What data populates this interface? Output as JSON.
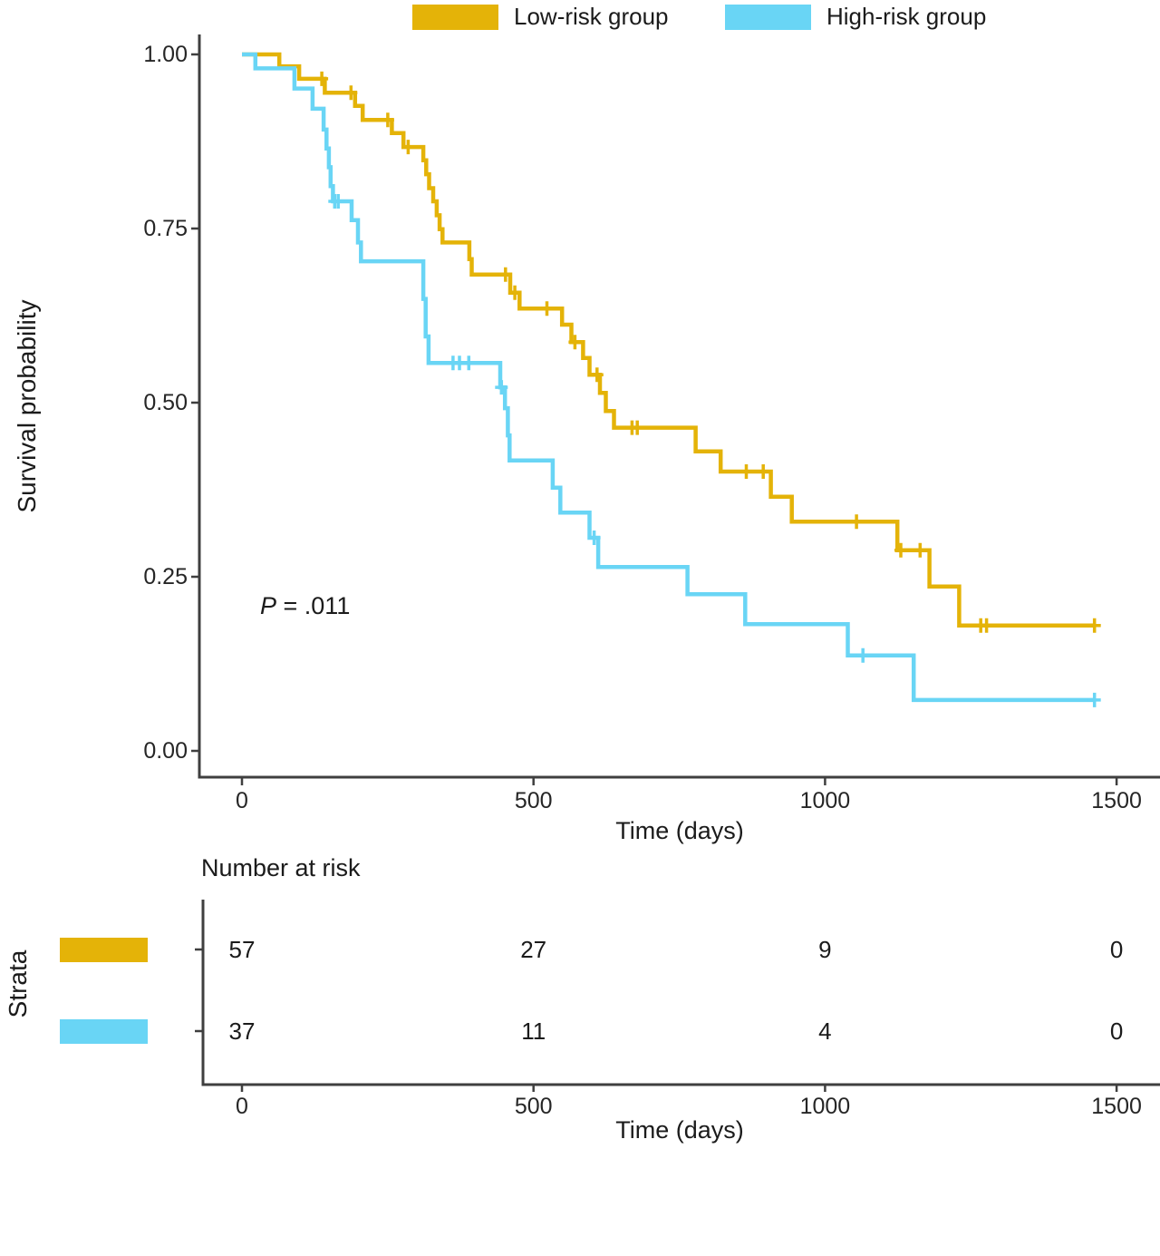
{
  "legend": {
    "items": [
      {
        "label": "Low-risk group",
        "color": "#E4B308"
      },
      {
        "label": "High-risk group",
        "color": "#69D5F5"
      }
    ]
  },
  "main_chart": {
    "y_axis": {
      "title": "Survival probability",
      "tick_labels": [
        "1.00",
        "0.75",
        "0.50",
        "0.25",
        "0.00"
      ],
      "tick_values": [
        1.0,
        0.75,
        0.5,
        0.25,
        0.0
      ]
    },
    "x_axis": {
      "title": "Time (days)",
      "tick_labels": [
        "0",
        "500",
        "1000",
        "1500"
      ],
      "tick_values": [
        0,
        500,
        1000,
        1500
      ]
    },
    "annotation": {
      "p_prefix": "P",
      "p_rest": " = .011"
    }
  },
  "chart_data": {
    "type": "line",
    "subtype": "kaplan-meier-step",
    "xlabel": "Time (days)",
    "ylabel": "Survival probability",
    "xlim": [
      0,
      1500
    ],
    "ylim": [
      0,
      1
    ],
    "x_ticks": [
      0,
      500,
      1000,
      1500
    ],
    "y_ticks": [
      1.0,
      0.75,
      0.5,
      0.25,
      0.0
    ],
    "grid": false,
    "legend_position": "top",
    "p_value": "P = .011",
    "series": [
      {
        "name": "Low-risk group",
        "color": "#E4B308",
        "n": 57,
        "points": [
          [
            0,
            1.0
          ],
          [
            64,
            0.983
          ],
          [
            98,
            0.965
          ],
          [
            142,
            0.945
          ],
          [
            194,
            0.926
          ],
          [
            207,
            0.906
          ],
          [
            257,
            0.887
          ],
          [
            277,
            0.867
          ],
          [
            311,
            0.848
          ],
          [
            316,
            0.828
          ],
          [
            321,
            0.808
          ],
          [
            328,
            0.789
          ],
          [
            334,
            0.769
          ],
          [
            339,
            0.749
          ],
          [
            344,
            0.73
          ],
          [
            390,
            0.706
          ],
          [
            394,
            0.684
          ],
          [
            460,
            0.658
          ],
          [
            476,
            0.635
          ],
          [
            549,
            0.612
          ],
          [
            565,
            0.587
          ],
          [
            585,
            0.564
          ],
          [
            596,
            0.54
          ],
          [
            614,
            0.514
          ],
          [
            624,
            0.488
          ],
          [
            638,
            0.464
          ],
          [
            778,
            0.43
          ],
          [
            821,
            0.401
          ],
          [
            907,
            0.365
          ],
          [
            943,
            0.329
          ],
          [
            1124,
            0.288
          ],
          [
            1179,
            0.236
          ],
          [
            1230,
            0.18
          ],
          [
            1462,
            0.18
          ]
        ],
        "censors": [
          [
            137,
            0.965
          ],
          [
            187,
            0.945
          ],
          [
            250,
            0.906
          ],
          [
            285,
            0.867
          ],
          [
            452,
            0.684
          ],
          [
            468,
            0.658
          ],
          [
            523,
            0.635
          ],
          [
            571,
            0.587
          ],
          [
            609,
            0.54
          ],
          [
            669,
            0.464
          ],
          [
            678,
            0.464
          ],
          [
            865,
            0.401
          ],
          [
            894,
            0.401
          ],
          [
            1054,
            0.329
          ],
          [
            1130,
            0.288
          ],
          [
            1163,
            0.288
          ],
          [
            1267,
            0.18
          ],
          [
            1277,
            0.18
          ],
          [
            1462,
            0.18
          ]
        ]
      },
      {
        "name": "High-risk group",
        "color": "#69D5F5",
        "n": 37,
        "points": [
          [
            0,
            1.0
          ],
          [
            23,
            0.98
          ],
          [
            90,
            0.951
          ],
          [
            121,
            0.922
          ],
          [
            140,
            0.892
          ],
          [
            145,
            0.865
          ],
          [
            149,
            0.838
          ],
          [
            152,
            0.811
          ],
          [
            156,
            0.789
          ],
          [
            188,
            0.762
          ],
          [
            199,
            0.73
          ],
          [
            204,
            0.703
          ],
          [
            311,
            0.649
          ],
          [
            315,
            0.595
          ],
          [
            320,
            0.557
          ],
          [
            443,
            0.522
          ],
          [
            451,
            0.492
          ],
          [
            456,
            0.453
          ],
          [
            459,
            0.417
          ],
          [
            533,
            0.378
          ],
          [
            546,
            0.342
          ],
          [
            596,
            0.306
          ],
          [
            611,
            0.264
          ],
          [
            764,
            0.225
          ],
          [
            863,
            0.182
          ],
          [
            1039,
            0.137
          ],
          [
            1152,
            0.073
          ],
          [
            1462,
            0.073
          ]
        ],
        "censors": [
          [
            159,
            0.789
          ],
          [
            165,
            0.789
          ],
          [
            362,
            0.557
          ],
          [
            373,
            0.557
          ],
          [
            389,
            0.557
          ],
          [
            445,
            0.522
          ],
          [
            604,
            0.306
          ],
          [
            1065,
            0.137
          ],
          [
            1462,
            0.073
          ]
        ]
      }
    ]
  },
  "risk_table": {
    "title": "Number at risk",
    "strata_label": "Strata",
    "xlabel": "Time (days)",
    "x_tick_labels": [
      "0",
      "500",
      "1000",
      "1500"
    ],
    "x_tick_values": [
      0,
      500,
      1000,
      1500
    ],
    "rows": [
      {
        "name": "Low-risk group",
        "color": "#E4B308",
        "counts": [
          57,
          27,
          9,
          0
        ]
      },
      {
        "name": "High-risk group",
        "color": "#69D5F5",
        "counts": [
          37,
          11,
          4,
          0
        ]
      }
    ]
  }
}
